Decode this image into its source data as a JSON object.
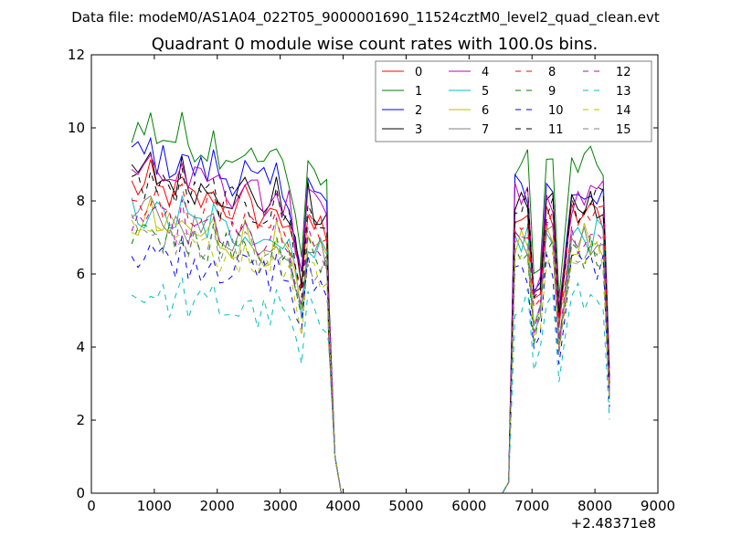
{
  "suptitle": "Data file: modeM0/AS1A04_022T05_9000001690_11524cztM0_level2_quad_clean.evt",
  "chart_data": {
    "type": "line",
    "title": "Quadrant 0 module wise count rates with 100.0s bins.",
    "xlabel": "",
    "ylabel": "",
    "xlim": [
      0,
      9000
    ],
    "ylim": [
      0,
      12
    ],
    "x_offset_label": "+2.48371e8",
    "xticks": [
      0,
      1000,
      2000,
      3000,
      4000,
      5000,
      6000,
      7000,
      8000,
      9000
    ],
    "xtick_labels": [
      "0",
      "1000",
      "2000",
      "3000",
      "4000",
      "5000",
      "6000",
      "7000",
      "8000",
      "9000"
    ],
    "yticks": [
      0,
      2,
      4,
      6,
      8,
      10,
      12
    ],
    "ytick_labels": [
      "0",
      "2",
      "4",
      "6",
      "8",
      "10",
      "12"
    ],
    "legend_location": "upper-right",
    "legend_columns": 4,
    "segment_a": {
      "x_start": 640,
      "x_step": 100,
      "count": 32
    },
    "segment_b": {
      "x_start": 6630,
      "x_step": 100,
      "count": 16
    },
    "gap": {
      "x": [
        3770,
        3870,
        3970,
        6530,
        6630
      ],
      "y": [
        5.0,
        1.0,
        0,
        0,
        0.3
      ]
    },
    "series": [
      {
        "name": "0",
        "color": "#ff0000",
        "dash": "solid",
        "level_a": 8.4,
        "level_b": 7.6
      },
      {
        "name": "1",
        "color": "#008000",
        "dash": "solid",
        "level_a": 10.0,
        "level_b": 9.0
      },
      {
        "name": "2",
        "color": "#0000ff",
        "dash": "solid",
        "level_a": 9.3,
        "level_b": 8.3
      },
      {
        "name": "3",
        "color": "#000000",
        "dash": "solid",
        "level_a": 8.8,
        "level_b": 8.0
      },
      {
        "name": "4",
        "color": "#bf00bf",
        "dash": "solid",
        "level_a": 8.9,
        "level_b": 8.1
      },
      {
        "name": "5",
        "color": "#00bfbf",
        "dash": "solid",
        "level_a": 7.7,
        "level_b": 7.0
      },
      {
        "name": "6",
        "color": "#bfbf00",
        "dash": "solid",
        "level_a": 7.4,
        "level_b": 6.9
      },
      {
        "name": "7",
        "color": "#808080",
        "dash": "solid",
        "level_a": 7.6,
        "level_b": 7.0
      },
      {
        "name": "8",
        "color": "#ff0000",
        "dash": "dashed",
        "level_a": 8.1,
        "level_b": 7.4
      },
      {
        "name": "9",
        "color": "#008000",
        "dash": "dashed",
        "level_a": 7.2,
        "level_b": 6.6
      },
      {
        "name": "10",
        "color": "#0000ff",
        "dash": "dashed",
        "level_a": 6.6,
        "level_b": 6.2
      },
      {
        "name": "11",
        "color": "#000000",
        "dash": "dashed",
        "level_a": 8.5,
        "level_b": 7.9
      },
      {
        "name": "12",
        "color": "#bf00bf",
        "dash": "dashed",
        "level_a": 7.5,
        "level_b": 7.0
      },
      {
        "name": "13",
        "color": "#00bfbf",
        "dash": "dashed",
        "level_a": 5.4,
        "level_b": 5.3
      },
      {
        "name": "14",
        "color": "#bfbf00",
        "dash": "dashed",
        "level_a": 7.0,
        "level_b": 6.5
      },
      {
        "name": "15",
        "color": "#808080",
        "dash": "dashed",
        "level_a": 7.2,
        "level_b": 6.8
      }
    ]
  }
}
